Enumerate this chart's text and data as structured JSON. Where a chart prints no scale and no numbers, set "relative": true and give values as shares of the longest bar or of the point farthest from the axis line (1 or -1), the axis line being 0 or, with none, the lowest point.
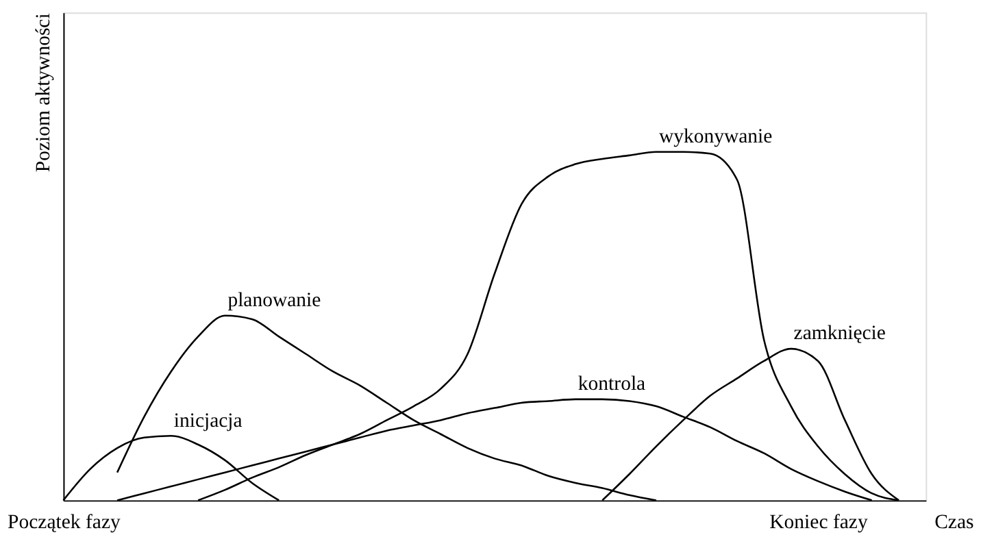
{
  "chart_data": {
    "type": "line",
    "relative": true,
    "xlabel": "Czas",
    "ylabel": "Poziom aktywności",
    "grid": false,
    "line_style": "solid",
    "categories": [
      "Początek fazy",
      null,
      null,
      null,
      null,
      null,
      null,
      null,
      null,
      null,
      null,
      null,
      null,
      null,
      null,
      null,
      null,
      null,
      null,
      null,
      null,
      null,
      null,
      null,
      null,
      null,
      null,
      null,
      "Koniec fazy",
      null,
      null,
      null,
      null
    ],
    "series": [
      {
        "name": "inicjacja",
        "color": "#000000",
        "values": [
          0,
          0.09,
          0.15,
          0.18,
          0.185,
          0.16,
          0.115,
          0.05,
          0,
          null,
          null,
          null,
          null,
          null,
          null,
          null,
          null,
          null,
          null,
          null,
          null,
          null,
          null,
          null,
          null,
          null,
          null,
          null,
          null,
          null,
          null,
          null,
          null
        ]
      },
      {
        "name": "planowanie",
        "color": "#000000",
        "values": [
          null,
          null,
          0.08,
          0.24,
          0.37,
          0.47,
          0.53,
          0.52,
          0.47,
          0.42,
          0.37,
          0.33,
          0.28,
          0.23,
          0.19,
          0.15,
          0.12,
          0.1,
          0.07,
          0.05,
          0.035,
          0.015,
          0,
          null,
          null,
          null,
          null,
          null,
          null,
          null,
          null,
          null,
          null
        ]
      },
      {
        "name": "kontrola",
        "color": "#000000",
        "values": [
          null,
          null,
          0,
          0.02,
          0.04,
          0.06,
          0.08,
          0.1,
          0.12,
          0.14,
          0.16,
          0.18,
          0.2,
          0.215,
          0.23,
          0.25,
          0.265,
          0.28,
          0.285,
          0.29,
          0.29,
          0.285,
          0.27,
          0.24,
          0.21,
          0.17,
          0.135,
          0.09,
          0.055,
          0.025,
          0,
          null,
          null
        ]
      },
      {
        "name": "wykonywanie",
        "color": "#000000",
        "values": [
          null,
          null,
          null,
          null,
          null,
          0,
          0.03,
          0.065,
          0.095,
          0.13,
          0.16,
          0.19,
          0.23,
          0.27,
          0.32,
          0.42,
          0.65,
          0.85,
          0.93,
          0.965,
          0.98,
          0.99,
          1.0,
          1.0,
          0.995,
          0.92,
          0.46,
          0.27,
          0.155,
          0.075,
          0.02,
          0,
          null
        ]
      },
      {
        "name": "zamknięcie",
        "color": "#000000",
        "values": [
          null,
          null,
          null,
          null,
          null,
          null,
          null,
          null,
          null,
          null,
          null,
          null,
          null,
          null,
          null,
          null,
          null,
          null,
          null,
          null,
          0,
          0.075,
          0.155,
          0.23,
          0.3,
          0.35,
          0.4,
          0.435,
          0.4,
          0.23,
          0.075,
          0,
          null
        ]
      }
    ]
  }
}
